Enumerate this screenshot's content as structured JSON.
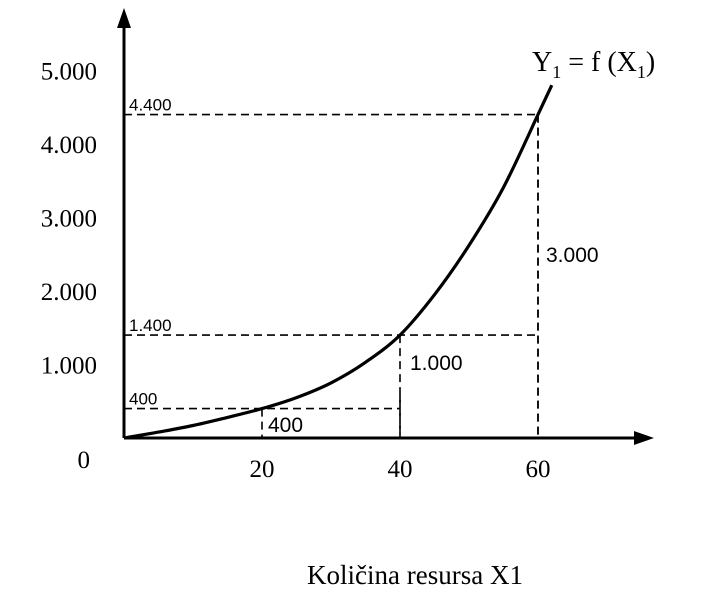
{
  "chart_data": {
    "type": "line",
    "title": "",
    "curve_label": {
      "y_sym": "Y",
      "y_sub": "1",
      "eq": " = f (X",
      "x_sub": "1",
      "close": ")"
    },
    "xlabel": "Količina resursa X1",
    "ylabel": "",
    "origin_label": "0",
    "x_ticks": [
      {
        "v": 20,
        "label": "20"
      },
      {
        "v": 40,
        "label": "40"
      },
      {
        "v": 60,
        "label": "60"
      }
    ],
    "y_ticks": [
      {
        "v": 1000,
        "label": "1.000"
      },
      {
        "v": 2000,
        "label": "2.000"
      },
      {
        "v": 3000,
        "label": "3.000"
      },
      {
        "v": 4000,
        "label": "4.000"
      },
      {
        "v": 5000,
        "label": "5.000"
      }
    ],
    "series": [
      {
        "x": [
          0,
          5,
          10,
          15,
          20,
          25,
          30,
          35,
          40,
          45,
          50,
          55,
          60,
          62
        ],
        "y": [
          0,
          80,
          170,
          280,
          400,
          550,
          750,
          1030,
          1400,
          1950,
          2620,
          3410,
          4400,
          4800
        ]
      }
    ],
    "reference_points": [
      {
        "x": 20,
        "y": 400,
        "y_label": "400"
      },
      {
        "x": 40,
        "y": 1400,
        "y_label": "1.400"
      },
      {
        "x": 60,
        "y": 4400,
        "y_label": "4.400"
      }
    ],
    "increments": [
      {
        "label": "400",
        "x": 20
      },
      {
        "label": "1.000",
        "x": 40
      },
      {
        "label": "3.000",
        "x": 60
      }
    ]
  }
}
